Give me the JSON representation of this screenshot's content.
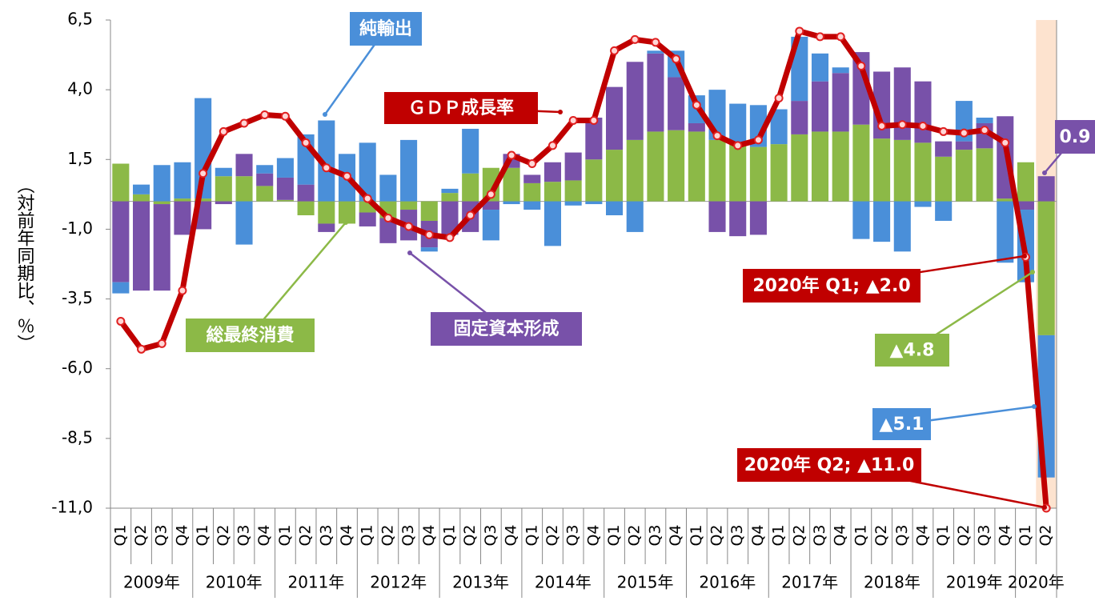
{
  "chart_data": {
    "type": "stacked-bar-line",
    "y_label": "（対前年同期比、％）",
    "year_groups": [
      {
        "label": "2009年",
        "quarters": [
          "Q1",
          "Q2",
          "Q3",
          "Q4"
        ]
      },
      {
        "label": "2010年",
        "quarters": [
          "Q1",
          "Q2",
          "Q3",
          "Q4"
        ]
      },
      {
        "label": "2011年",
        "quarters": [
          "Q1",
          "Q2",
          "Q3",
          "Q4"
        ]
      },
      {
        "label": "2012年",
        "quarters": [
          "Q1",
          "Q2",
          "Q3",
          "Q4"
        ]
      },
      {
        "label": "2013年",
        "quarters": [
          "Q1",
          "Q2",
          "Q3",
          "Q4"
        ]
      },
      {
        "label": "2014年",
        "quarters": [
          "Q1",
          "Q2",
          "Q3",
          "Q4"
        ]
      },
      {
        "label": "2015年",
        "quarters": [
          "Q1",
          "Q2",
          "Q3",
          "Q4"
        ]
      },
      {
        "label": "2016年",
        "quarters": [
          "Q1",
          "Q2",
          "Q3",
          "Q4"
        ]
      },
      {
        "label": "2017年",
        "quarters": [
          "Q1",
          "Q2",
          "Q3",
          "Q4"
        ]
      },
      {
        "label": "2018年",
        "quarters": [
          "Q1",
          "Q2",
          "Q3",
          "Q4"
        ]
      },
      {
        "label": "2019年",
        "quarters": [
          "Q1",
          "Q2",
          "Q3",
          "Q4"
        ]
      },
      {
        "label": "2020年",
        "quarters": [
          "Q1",
          "Q2"
        ]
      }
    ],
    "series": [
      {
        "name": "総最終消費",
        "kind": "bar",
        "color": "#8cb947",
        "values": [
          1.35,
          0.25,
          -0.1,
          0.1,
          0.1,
          0.9,
          0.9,
          0.55,
          0.05,
          -0.5,
          -0.8,
          -0.8,
          -0.4,
          -0.6,
          -0.3,
          -0.7,
          0.3,
          1.0,
          1.2,
          1.2,
          0.65,
          0.7,
          0.75,
          1.5,
          1.85,
          2.2,
          2.5,
          2.55,
          2.5,
          2.2,
          2.05,
          1.95,
          2.05,
          2.4,
          2.5,
          2.5,
          2.75,
          2.25,
          2.2,
          2.1,
          1.6,
          1.85,
          1.9,
          0.1,
          1.4,
          -4.8
        ],
        "value_labels": [
          null,
          null,
          null,
          null,
          null,
          null,
          null,
          null,
          null,
          null,
          null,
          null,
          null,
          null,
          null,
          null,
          null,
          null,
          null,
          null,
          null,
          null,
          null,
          null,
          null,
          null,
          null,
          null,
          null,
          null,
          null,
          null,
          null,
          null,
          null,
          null,
          null,
          null,
          null,
          null,
          null,
          null,
          null,
          null,
          null,
          "▲4.8"
        ]
      },
      {
        "name": "固定資本形成",
        "kind": "bar",
        "color": "#7851a9",
        "values": [
          -2.9,
          -3.2,
          -3.1,
          -1.2,
          -1.0,
          -0.1,
          0.8,
          0.45,
          0.8,
          0.6,
          -0.3,
          0,
          -0.5,
          -0.9,
          -1.1,
          -0.95,
          -1.2,
          -1.1,
          -0.3,
          0.5,
          0.3,
          0.7,
          1.0,
          1.5,
          2.25,
          2.8,
          2.8,
          1.9,
          0.3,
          -1.1,
          -1.25,
          -1.2,
          0,
          1.2,
          1.8,
          2.1,
          2.6,
          2.4,
          2.6,
          2.2,
          0.55,
          0.3,
          0.9,
          2.95,
          -0.3,
          0.9
        ]
      },
      {
        "name": "純輸出",
        "kind": "bar",
        "color": "#4a8fd9",
        "values": [
          -0.4,
          0.35,
          1.3,
          1.3,
          3.6,
          0.3,
          -1.55,
          0.3,
          0.7,
          1.8,
          2.9,
          1.7,
          2.1,
          0.95,
          2.2,
          -0.15,
          0.15,
          1.6,
          -1.1,
          -0.1,
          -0.3,
          -1.6,
          -0.15,
          -0.1,
          -0.5,
          -1.1,
          0.1,
          0.95,
          1.0,
          1.8,
          1.45,
          1.5,
          1.25,
          2.3,
          1.0,
          0.2,
          -1.35,
          -1.45,
          -1.8,
          -0.2,
          -0.7,
          1.45,
          0.2,
          -2.2,
          -2.6,
          -5.1
        ],
        "value_labels": [
          null,
          null,
          null,
          null,
          null,
          null,
          null,
          null,
          null,
          null,
          null,
          null,
          null,
          null,
          null,
          null,
          null,
          null,
          null,
          null,
          null,
          null,
          null,
          null,
          null,
          null,
          null,
          null,
          null,
          null,
          null,
          null,
          null,
          null,
          null,
          null,
          null,
          null,
          null,
          null,
          null,
          null,
          null,
          null,
          null,
          "▲5.1"
        ]
      },
      {
        "name": "ＧＤＰ成長率",
        "kind": "line",
        "color": "#c00000",
        "values": [
          -4.3,
          -5.3,
          -5.1,
          -3.2,
          1.0,
          2.5,
          2.8,
          3.1,
          3.05,
          2.1,
          1.2,
          0.9,
          0.1,
          -0.6,
          -0.9,
          -1.2,
          -1.3,
          -0.5,
          0.25,
          1.65,
          1.35,
          2.0,
          2.9,
          2.9,
          5.4,
          5.8,
          5.7,
          5.1,
          3.45,
          2.35,
          2.0,
          2.2,
          3.7,
          6.1,
          5.9,
          5.9,
          4.85,
          2.7,
          2.75,
          2.7,
          2.5,
          2.45,
          2.55,
          2.1,
          -2.0,
          -11.0
        ],
        "value_labels": [
          null,
          null,
          null,
          null,
          null,
          null,
          null,
          null,
          null,
          null,
          null,
          null,
          null,
          null,
          null,
          null,
          null,
          null,
          null,
          null,
          null,
          null,
          null,
          null,
          null,
          null,
          null,
          null,
          null,
          null,
          null,
          null,
          null,
          null,
          null,
          null,
          null,
          null,
          null,
          null,
          null,
          null,
          null,
          null,
          "2020年 Q1; ▲2.0",
          "2020年 Q2; ▲11.0"
        ]
      }
    ],
    "ylim": [
      -11,
      6.5
    ],
    "yticks": [
      {
        "value": 6.5,
        "label": "6,5"
      },
      {
        "value": 4,
        "label": "4,0"
      },
      {
        "value": 1.5,
        "label": "1,5"
      },
      {
        "value": -1,
        "label": "-1,0"
      },
      {
        "value": -3.5,
        "label": "-3,5"
      },
      {
        "value": -6,
        "label": "-6,0"
      },
      {
        "value": -8.5,
        "label": "-8,5"
      },
      {
        "value": -11,
        "label": "-11,0"
      }
    ]
  }
}
